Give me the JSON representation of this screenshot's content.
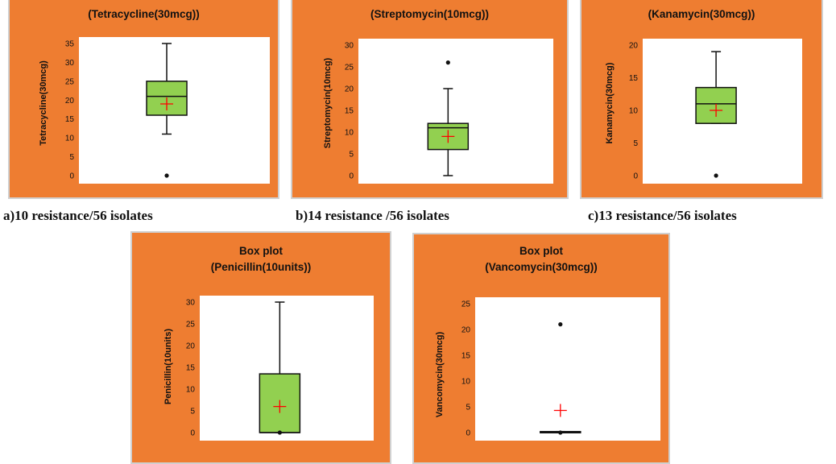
{
  "chart_data": [
    {
      "type": "box",
      "title_line1": "",
      "title_line2": "(Tetracycline(30mcg))",
      "ylabel": "Tetracycline(30mcg)",
      "ylim": [
        0,
        35
      ],
      "yticks": [
        0,
        5,
        10,
        15,
        20,
        25,
        30,
        35
      ],
      "whisker_low": 11,
      "q1": 16,
      "median": 21,
      "q3": 25,
      "whisker_high": 35,
      "mean": 19,
      "outliers": [
        0
      ],
      "caption": "a)10 resistance/56 isolates"
    },
    {
      "type": "box",
      "title_line1": "",
      "title_line2": "(Streptomycin(10mcg))",
      "ylabel": "Streptomycin(10mcg)",
      "ylim": [
        0,
        30
      ],
      "yticks": [
        0,
        5,
        10,
        15,
        20,
        25,
        30
      ],
      "whisker_low": 0,
      "q1": 6,
      "median": 11,
      "q3": 12,
      "whisker_high": 20,
      "mean": 9,
      "outliers": [
        26
      ],
      "caption": "b)14 resistance /56 isolates"
    },
    {
      "type": "box",
      "title_line1": "",
      "title_line2": "(Kanamycin(30mcg))",
      "ylabel": "Kanamycin(30mcg)",
      "ylim": [
        0,
        20
      ],
      "yticks": [
        0,
        5,
        10,
        15,
        20
      ],
      "whisker_low": 8,
      "q1": 8,
      "median": 11,
      "q3": 13.5,
      "whisker_high": 19,
      "mean": 10,
      "outliers": [
        0
      ],
      "caption": "c)13 resistance/56 isolates"
    },
    {
      "type": "box",
      "title_line1": "Box plot",
      "title_line2": "(Penicillin(10units))",
      "ylabel": "Penicillin(10units)",
      "ylim": [
        0,
        30
      ],
      "yticks": [
        0,
        5,
        10,
        15,
        20,
        25,
        30
      ],
      "whisker_low": 0,
      "q1": 0,
      "median": 0,
      "q3": 13.5,
      "whisker_high": 30,
      "mean": 6,
      "outliers": [
        0
      ],
      "caption": ""
    },
    {
      "type": "box",
      "title_line1": "Box plot",
      "title_line2": "(Vancomycin(30mcg))",
      "ylabel": "Vancomycin(30mcg)",
      "ylim": [
        0,
        25
      ],
      "yticks": [
        0,
        5,
        10,
        15,
        20,
        25
      ],
      "whisker_low": 0,
      "q1": 0,
      "median": 0,
      "q3": 0.2,
      "whisker_high": 0.2,
      "mean": 4.3,
      "outliers": [
        21,
        0
      ],
      "caption": ""
    }
  ],
  "colors": {
    "panel": "#ee7d31",
    "box_fill": "#92d050",
    "mean_marker": "#ff0000",
    "line": "#111111"
  }
}
